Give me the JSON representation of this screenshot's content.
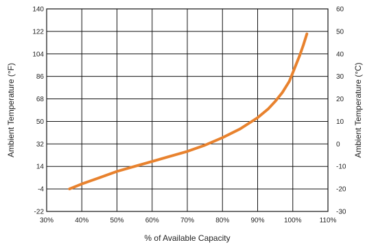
{
  "chart_data": {
    "type": "line",
    "title": "",
    "xlabel": "% of Available Capacity",
    "ylabel": "Ambient Temperature (°F)",
    "y2label": "Ambient Temperature (°C)",
    "xlim": [
      30,
      110
    ],
    "ylim": [
      -22,
      140
    ],
    "y2lim": [
      -30,
      60
    ],
    "xticks": [
      "30%",
      "40%",
      "50%",
      "60%",
      "70%",
      "80%",
      "90%",
      "100%",
      "110%"
    ],
    "yticks": [
      "-22",
      "-4",
      "14",
      "32",
      "50",
      "68",
      "86",
      "104",
      "122",
      "140"
    ],
    "y2ticks": [
      "-30",
      "-20",
      "-10",
      "0",
      "10",
      "20",
      "30",
      "40",
      "50",
      "60"
    ],
    "grid": true,
    "colors": {
      "line": "#e8822e",
      "grid": "#111111"
    },
    "series": [
      {
        "x": [
          36.5,
          40,
          45,
          50,
          55,
          60,
          65,
          70,
          75,
          80,
          85,
          90,
          93,
          95,
          97,
          99,
          100,
          101,
          102,
          103,
          104
        ],
        "y": [
          -4,
          0,
          5,
          10,
          14,
          18,
          22,
          26,
          31,
          37,
          44,
          53,
          60,
          66,
          73,
          82,
          89,
          96,
          103,
          111,
          120
        ]
      }
    ]
  }
}
